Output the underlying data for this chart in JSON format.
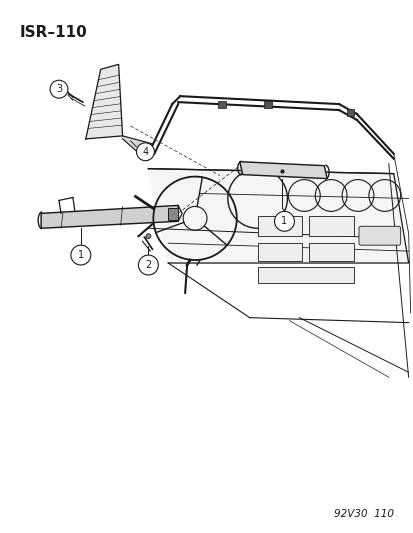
{
  "title": "ISR–110",
  "footer": "92V30  110",
  "bg_color": "#ffffff",
  "line_color": "#1a1a1a",
  "fig_width": 4.14,
  "fig_height": 5.33,
  "dpi": 100,
  "title_fontsize": 11,
  "footer_fontsize": 7.5,
  "callout_r": 0.018,
  "callout_fontsize": 7
}
